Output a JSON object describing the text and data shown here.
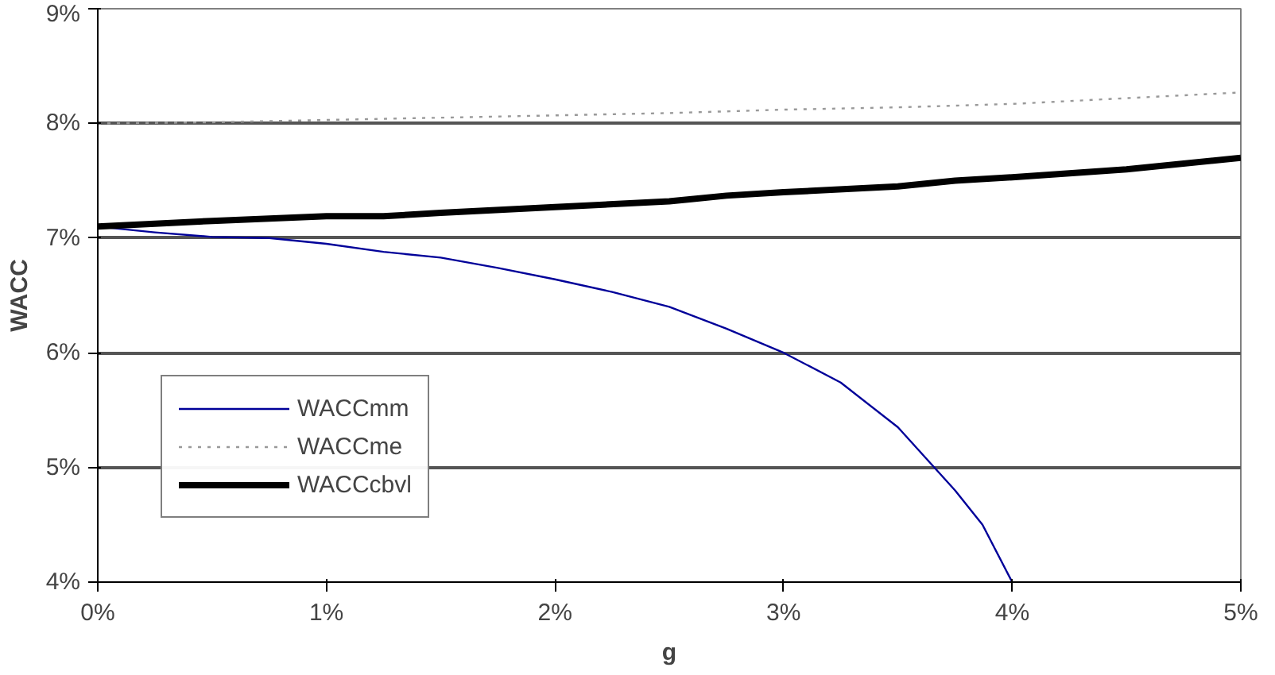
{
  "chart_data": {
    "type": "line",
    "xlabel": "g",
    "ylabel": "WACC",
    "xlim": [
      0,
      5
    ],
    "ylim": [
      4,
      9
    ],
    "xticks": [
      {
        "value": 0,
        "label": "0%"
      },
      {
        "value": 1,
        "label": "1%"
      },
      {
        "value": 2,
        "label": "2%"
      },
      {
        "value": 3,
        "label": "3%"
      },
      {
        "value": 4,
        "label": "4%"
      },
      {
        "value": 5,
        "label": "5%"
      }
    ],
    "yticks": [
      {
        "value": 4,
        "label": "4%"
      },
      {
        "value": 5,
        "label": "5%"
      },
      {
        "value": 6,
        "label": "6%"
      },
      {
        "value": 7,
        "label": "7%"
      },
      {
        "value": 8,
        "label": "8%"
      },
      {
        "value": 9,
        "label": "9%"
      }
    ],
    "grid": "y",
    "legend": "bottom left",
    "marker": "none",
    "series": [
      {
        "name": "WACCmm",
        "color": "#000099",
        "line_style": "solid",
        "x": [
          0,
          0.25,
          0.5,
          0.75,
          1,
          1.25,
          1.5,
          1.75,
          2,
          2.25,
          2.5,
          2.75,
          3,
          3.25,
          3.5,
          3.75,
          3.87,
          4
        ],
        "values": [
          7.1,
          7.05,
          7.01,
          7.0,
          6.95,
          6.88,
          6.83,
          6.74,
          6.64,
          6.53,
          6.4,
          6.21,
          6.0,
          5.74,
          5.35,
          4.8,
          4.5,
          4.0
        ]
      },
      {
        "name": "WACCme",
        "color": "#999999",
        "line_style": "dotted",
        "x": [
          0,
          0.5,
          1,
          1.5,
          2,
          2.5,
          3,
          3.5,
          4,
          4.5,
          5
        ],
        "values": [
          8.0,
          8.01,
          8.03,
          8.05,
          8.07,
          8.09,
          8.12,
          8.14,
          8.17,
          8.22,
          8.27
        ]
      },
      {
        "name": "WACCcbvl",
        "color": "#000000",
        "line_style": "solid",
        "x": [
          0,
          0.5,
          1,
          1.25,
          1.5,
          2,
          2.5,
          2.75,
          3,
          3.5,
          3.75,
          4,
          4.5,
          5
        ],
        "values": [
          7.1,
          7.15,
          7.19,
          7.19,
          7.22,
          7.27,
          7.32,
          7.37,
          7.4,
          7.45,
          7.5,
          7.53,
          7.6,
          7.7
        ]
      }
    ]
  }
}
